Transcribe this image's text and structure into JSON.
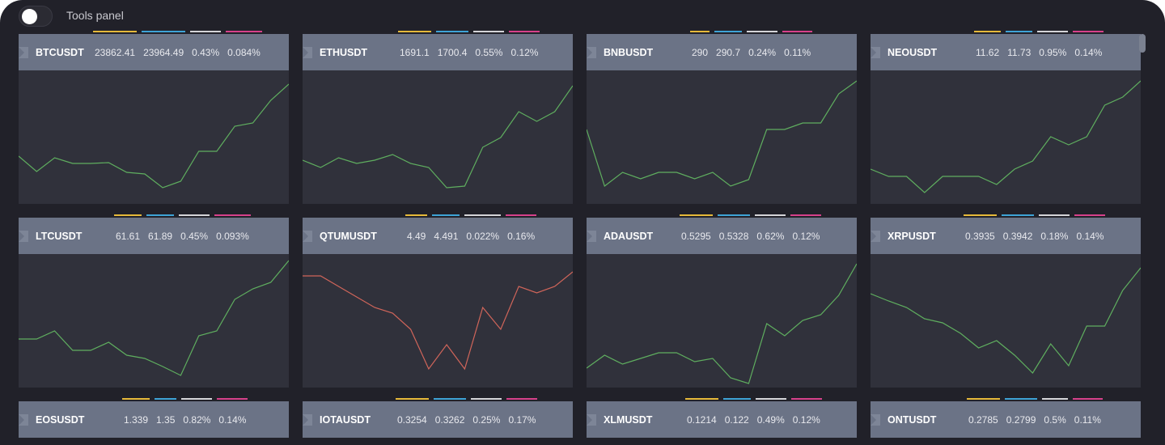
{
  "tools_panel": {
    "label": "Tools panel",
    "enabled": false
  },
  "colors": {
    "bars": [
      "#e6b93a",
      "#3ea3d6",
      "#d4d4d8",
      "#d6418a"
    ],
    "up": "#5fae5f",
    "down": "#d0655a"
  },
  "cards": [
    {
      "symbol": "BTCUSDT",
      "values": [
        "23862.41",
        "23964.49",
        "0.43%",
        "0.084%"
      ],
      "offset": 94,
      "trend": "up",
      "series": [
        59,
        40,
        57,
        50,
        50,
        51,
        39,
        37,
        20,
        28,
        65,
        65,
        96,
        100,
        128,
        148
      ]
    },
    {
      "symbol": "ETHUSDT",
      "values": [
        "1691.1",
        "1700.4",
        "0.55%",
        "0.12%"
      ],
      "offset": 120,
      "trend": "up",
      "series": [
        54,
        45,
        57,
        50,
        54,
        61,
        50,
        45,
        20,
        22,
        70,
        82,
        114,
        102,
        114,
        146
      ]
    },
    {
      "symbol": "BNBUSDT",
      "values": [
        "290",
        "290.7",
        "0.24%",
        "0.11%"
      ],
      "offset": 130,
      "trend": "up",
      "series": [
        92,
        22,
        39,
        31,
        39,
        39,
        31,
        39,
        22,
        30,
        92,
        92,
        100,
        100,
        136,
        152
      ]
    },
    {
      "symbol": "NEOUSDT",
      "values": [
        "11.62",
        "11.73",
        "0.95%",
        "0.14%"
      ],
      "offset": 130,
      "trend": "up",
      "series": [
        43,
        34,
        34,
        14,
        34,
        34,
        34,
        24,
        43,
        53,
        83,
        73,
        83,
        122,
        132,
        152
      ]
    },
    {
      "symbol": "LTCUSDT",
      "values": [
        "61.61",
        "61.89",
        "0.45%",
        "0.093%"
      ],
      "offset": 120,
      "trend": "up",
      "series": [
        60,
        60,
        70,
        46,
        46,
        56,
        40,
        36,
        26,
        15,
        64,
        70,
        109,
        122,
        130,
        157
      ]
    },
    {
      "symbol": "QTUMUSDT",
      "values": [
        "4.49",
        "4.491",
        "0.022%",
        "0.16%"
      ],
      "offset": 129,
      "trend": "down",
      "series": [
        138,
        138,
        125,
        112,
        99,
        92,
        72,
        23,
        53,
        23,
        99,
        72,
        125,
        117,
        125,
        143
      ]
    },
    {
      "symbol": "ADAUSDT",
      "values": [
        "0.5295",
        "0.5328",
        "0.62%",
        "0.12%"
      ],
      "offset": 117,
      "trend": "up",
      "series": [
        24,
        40,
        29,
        36,
        43,
        43,
        32,
        36,
        12,
        5,
        79,
        64,
        83,
        90,
        114,
        153
      ]
    },
    {
      "symbol": "XRPUSDT",
      "values": [
        "0.3935",
        "0.3942",
        "0.18%",
        "0.14%"
      ],
      "offset": 117,
      "trend": "up",
      "series": [
        116,
        107,
        99,
        85,
        80,
        67,
        49,
        58,
        40,
        18,
        54,
        27,
        76,
        76,
        120,
        148
      ]
    },
    {
      "symbol": "EOSUSDT",
      "values": [
        "1.339",
        "1.35",
        "0.82%",
        "0.14%"
      ],
      "offset": 130,
      "trend": "up",
      "series": []
    },
    {
      "symbol": "IOTAUSDT",
      "values": [
        "0.3254",
        "0.3262",
        "0.25%",
        "0.17%"
      ],
      "offset": 117,
      "trend": "up",
      "series": []
    },
    {
      "symbol": "XLMUSDT",
      "values": [
        "0.1214",
        "0.122",
        "0.49%",
        "0.12%"
      ],
      "offset": 124,
      "trend": "up",
      "series": []
    },
    {
      "symbol": "ONTUSDT",
      "values": [
        "0.2785",
        "0.2799",
        "0.5%",
        "0.11%"
      ],
      "offset": 121,
      "trend": "up",
      "series": []
    }
  ]
}
